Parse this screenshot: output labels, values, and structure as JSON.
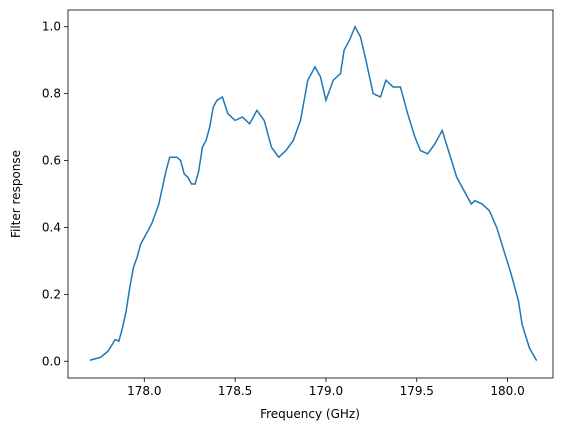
{
  "chart_data": {
    "type": "line",
    "xlabel": "Frequency (GHz)",
    "ylabel": "Filter response",
    "x": [
      177.7,
      177.76,
      177.8,
      177.84,
      177.86,
      177.88,
      177.9,
      177.92,
      177.94,
      177.96,
      177.98,
      178.0,
      178.02,
      178.04,
      178.06,
      178.08,
      178.1,
      178.12,
      178.14,
      178.18,
      178.2,
      178.22,
      178.24,
      178.26,
      178.28,
      178.3,
      178.32,
      178.34,
      178.36,
      178.38,
      178.4,
      178.43,
      178.46,
      178.5,
      178.54,
      178.58,
      178.62,
      178.66,
      178.7,
      178.74,
      178.78,
      178.82,
      178.86,
      178.9,
      178.94,
      178.97,
      179.0,
      179.04,
      179.08,
      179.1,
      179.13,
      179.16,
      179.19,
      179.22,
      179.26,
      179.3,
      179.33,
      179.37,
      179.41,
      179.45,
      179.49,
      179.52,
      179.56,
      179.6,
      179.64,
      179.68,
      179.72,
      179.76,
      179.8,
      179.82,
      179.86,
      179.9,
      179.94,
      179.98,
      180.02,
      180.06,
      180.08,
      180.12,
      180.16
    ],
    "series": [
      {
        "name": "Filter response",
        "color": "#1f77b4",
        "values": [
          0.003,
          0.012,
          0.03,
          0.065,
          0.06,
          0.1,
          0.15,
          0.22,
          0.28,
          0.31,
          0.35,
          0.37,
          0.39,
          0.41,
          0.44,
          0.47,
          0.52,
          0.57,
          0.61,
          0.61,
          0.6,
          0.56,
          0.55,
          0.53,
          0.53,
          0.57,
          0.64,
          0.66,
          0.7,
          0.76,
          0.78,
          0.79,
          0.74,
          0.72,
          0.73,
          0.71,
          0.75,
          0.72,
          0.64,
          0.61,
          0.63,
          0.66,
          0.72,
          0.84,
          0.88,
          0.85,
          0.78,
          0.84,
          0.86,
          0.93,
          0.96,
          1.0,
          0.97,
          0.9,
          0.8,
          0.79,
          0.84,
          0.82,
          0.82,
          0.74,
          0.67,
          0.63,
          0.62,
          0.65,
          0.69,
          0.62,
          0.55,
          0.51,
          0.47,
          0.48,
          0.47,
          0.45,
          0.4,
          0.33,
          0.26,
          0.18,
          0.11,
          0.04,
          0.002
        ]
      }
    ],
    "xlim": [
      177.58,
      180.25
    ],
    "xticks": [
      {
        "value": 178.0,
        "label": "178.0"
      },
      {
        "value": 178.5,
        "label": "178.5"
      },
      {
        "value": 179.0,
        "label": "179.0"
      },
      {
        "value": 179.5,
        "label": "179.5"
      },
      {
        "value": 180.0,
        "label": "180.0"
      }
    ],
    "ylim": [
      -0.05,
      1.05
    ],
    "yticks": [
      {
        "value": 0,
        "label": "0.0"
      },
      0.2,
      0.4,
      0.6,
      0.8,
      {
        "value": 1,
        "label": "1.0"
      }
    ]
  }
}
